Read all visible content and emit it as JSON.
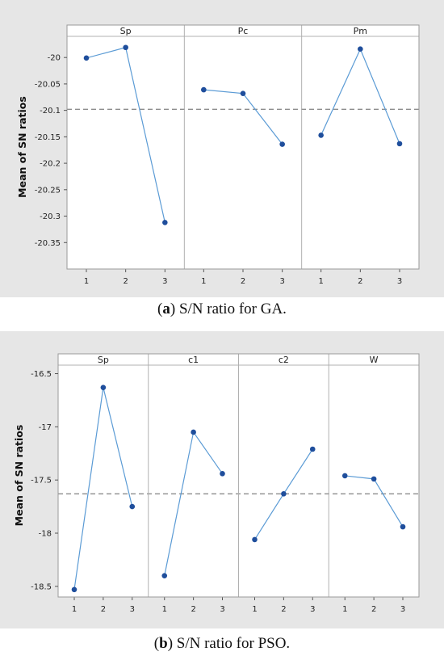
{
  "chart_data": [
    {
      "type": "line",
      "ylabel": "Mean of SN ratios",
      "ylim": [
        -20.4,
        -19.96
      ],
      "yticks": [
        -20,
        -20.05,
        -20.1,
        -20.15,
        -20.2,
        -20.25,
        -20.3,
        -20.35
      ],
      "ytick_labels": [
        "-20",
        "-20.05",
        "-20.1",
        "-20.15",
        "-20.2",
        "-20.25",
        "-20.3",
        "-20.35"
      ],
      "reference_line": -20.098,
      "xtick_labels": [
        "1",
        "2",
        "3"
      ],
      "panels": [
        {
          "name": "Sp",
          "values": [
            -20.001,
            -19.981,
            -20.312
          ]
        },
        {
          "name": "Pc",
          "values": [
            -20.061,
            -20.068,
            -20.164
          ]
        },
        {
          "name": "Pm",
          "values": [
            -20.147,
            -19.984,
            -20.163
          ]
        }
      ],
      "caption_bold": "a",
      "caption_text": " S/N ratio for GA.",
      "colors": {
        "line": "#5b9bd5",
        "marker": "#1f4e9c",
        "refline": "#8c8c8c",
        "outer_bg": "#e6e6e6"
      }
    },
    {
      "type": "line",
      "ylabel": "Mean of SN ratios",
      "ylim": [
        -18.6,
        -16.42
      ],
      "yticks": [
        -16.5,
        -17,
        -17.5,
        -18,
        -18.5
      ],
      "ytick_labels": [
        "-16.5",
        "-17",
        "-17.5",
        "-18",
        "-18.5"
      ],
      "reference_line": -17.63,
      "xtick_labels": [
        "1",
        "2",
        "3"
      ],
      "panels": [
        {
          "name": "Sp",
          "values": [
            -18.53,
            -16.63,
            -17.75
          ]
        },
        {
          "name": "c1",
          "values": [
            -18.4,
            -17.05,
            -17.44
          ]
        },
        {
          "name": "c2",
          "values": [
            -18.06,
            -17.63,
            -17.21
          ]
        },
        {
          "name": "W",
          "values": [
            -17.46,
            -17.49,
            -17.94
          ]
        }
      ],
      "caption_bold": "b",
      "caption_text": " S/N ratio for PSO.",
      "colors": {
        "line": "#5b9bd5",
        "marker": "#1f4e9c",
        "refline": "#8c8c8c",
        "outer_bg": "#e6e6e6"
      }
    }
  ]
}
